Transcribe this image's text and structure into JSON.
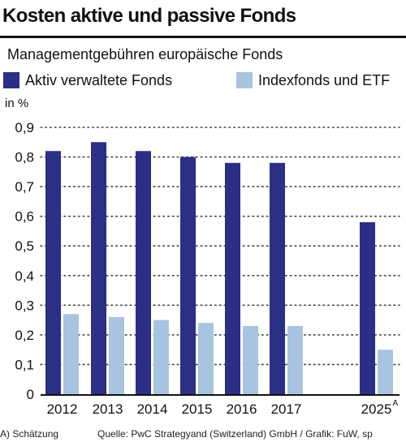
{
  "title": "Kosten aktive und passive Fonds",
  "subtitle": "Managementgebühren europäische Fonds",
  "legend": [
    {
      "label": "Aktiv verwaltete Fonds",
      "color": "#2b2f86"
    },
    {
      "label": "Indexfonds und ETF",
      "color": "#a7c4e0"
    }
  ],
  "y_unit_label": "in %",
  "footnote": "A) Schätzung",
  "source": "Quelle: PwC Strategyand (Switzerland) GmbH / Grafik: FuW, sp",
  "chart_data": {
    "type": "bar",
    "categories": [
      "2012",
      "2013",
      "2014",
      "2015",
      "2016",
      "2017",
      "2025"
    ],
    "category_superscripts": [
      "",
      "",
      "",
      "",
      "",
      "",
      "A"
    ],
    "ylabel": "in %",
    "ylim": [
      0,
      0.9
    ],
    "yticks": [
      0,
      0.1,
      0.2,
      0.3,
      0.4,
      0.5,
      0.6,
      0.7,
      0.8,
      0.9
    ],
    "ytick_labels": [
      "0",
      "0,1",
      "0,2",
      "0,3",
      "0,4",
      "0,5",
      "0,6",
      "0,7",
      "0,8",
      "0,9"
    ],
    "grid": "dotted horizontal",
    "series": [
      {
        "name": "Aktiv verwaltete Fonds",
        "color": "#2b2f86",
        "values": [
          0.82,
          0.85,
          0.82,
          0.8,
          0.78,
          0.78,
          0.58
        ]
      },
      {
        "name": "Indexfonds und ETF",
        "color": "#a7c4e0",
        "values": [
          0.27,
          0.26,
          0.25,
          0.24,
          0.23,
          0.23,
          0.15
        ]
      }
    ]
  }
}
